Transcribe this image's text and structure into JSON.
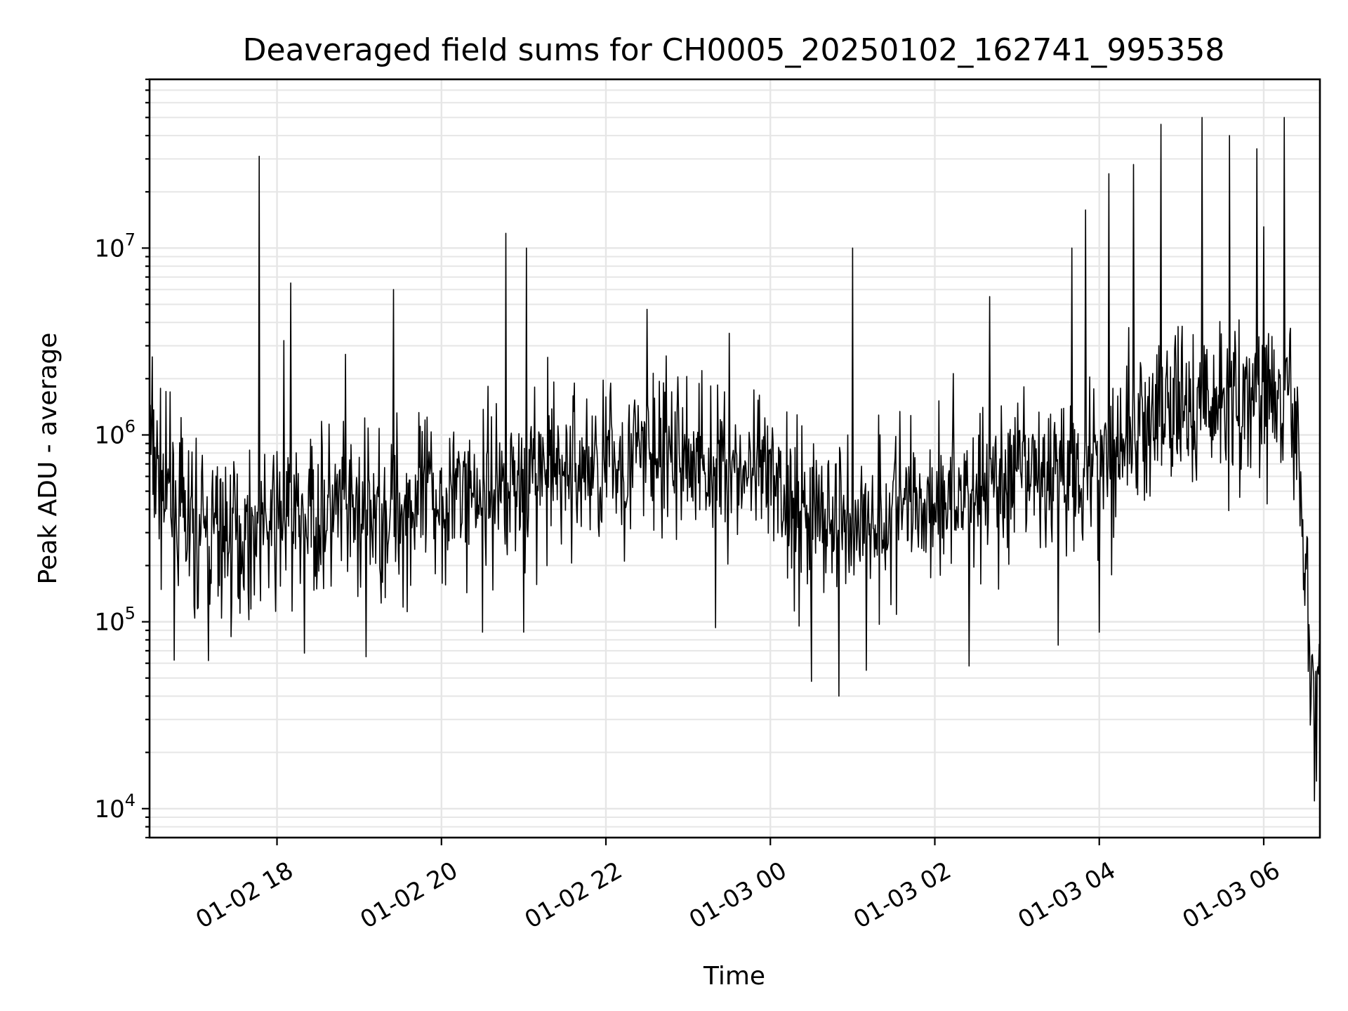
{
  "chart_data": {
    "type": "line",
    "title": "Deaveraged field sums for CH0005_20250102_162741_995358",
    "xlabel": "Time",
    "ylabel": "Peak ADU - average",
    "yscale": "log",
    "ylim": [
      7000,
      80000000
    ],
    "xlim": [
      "2025-01-02 16:27",
      "2025-01-03 06:41"
    ],
    "grid": true,
    "x_ticks": [
      {
        "value": "2025-01-02 18:00",
        "label": "01-02 18"
      },
      {
        "value": "2025-01-02 20:00",
        "label": "01-02 20"
      },
      {
        "value": "2025-01-02 22:00",
        "label": "01-02 22"
      },
      {
        "value": "2025-01-03 00:00",
        "label": "01-03 00"
      },
      {
        "value": "2025-01-03 02:00",
        "label": "01-03 02"
      },
      {
        "value": "2025-01-03 04:00",
        "label": "01-03 04"
      },
      {
        "value": "2025-01-03 06:00",
        "label": "01-03 06"
      }
    ],
    "y_ticks": [
      {
        "value": 10000,
        "base": "10",
        "exp": "4"
      },
      {
        "value": 100000,
        "base": "10",
        "exp": "5"
      },
      {
        "value": 1000000,
        "base": "10",
        "exp": "6"
      },
      {
        "value": 10000000,
        "base": "10",
        "exp": "7"
      }
    ],
    "series": [
      {
        "color": "#000000",
        "trend": [
          {
            "x": "2025-01-02 16:27",
            "y": 900000
          },
          {
            "x": "2025-01-02 16:40",
            "y": 420000
          },
          {
            "x": "2025-01-02 17:00",
            "y": 300000
          },
          {
            "x": "2025-01-02 17:30",
            "y": 290000
          },
          {
            "x": "2025-01-02 18:00",
            "y": 330000
          },
          {
            "x": "2025-01-02 18:30",
            "y": 380000
          },
          {
            "x": "2025-01-02 19:00",
            "y": 360000
          },
          {
            "x": "2025-01-02 19:30",
            "y": 400000
          },
          {
            "x": "2025-01-02 20:00",
            "y": 470000
          },
          {
            "x": "2025-01-02 20:30",
            "y": 520000
          },
          {
            "x": "2025-01-02 21:00",
            "y": 580000
          },
          {
            "x": "2025-01-02 21:30",
            "y": 640000
          },
          {
            "x": "2025-01-02 22:00",
            "y": 700000
          },
          {
            "x": "2025-01-02 22:30",
            "y": 780000
          },
          {
            "x": "2025-01-02 23:00",
            "y": 760000
          },
          {
            "x": "2025-01-02 23:30",
            "y": 680000
          },
          {
            "x": "2025-01-03 00:00",
            "y": 540000
          },
          {
            "x": "2025-01-03 00:30",
            "y": 380000
          },
          {
            "x": "2025-01-03 01:00",
            "y": 340000
          },
          {
            "x": "2025-01-03 01:30",
            "y": 400000
          },
          {
            "x": "2025-01-03 02:00",
            "y": 470000
          },
          {
            "x": "2025-01-03 02:30",
            "y": 520000
          },
          {
            "x": "2025-01-03 03:00",
            "y": 560000
          },
          {
            "x": "2025-01-03 03:30",
            "y": 640000
          },
          {
            "x": "2025-01-03 04:00",
            "y": 760000
          },
          {
            "x": "2025-01-03 04:30",
            "y": 1100000
          },
          {
            "x": "2025-01-03 05:00",
            "y": 1350000
          },
          {
            "x": "2025-01-03 05:30",
            "y": 1500000
          },
          {
            "x": "2025-01-03 06:00",
            "y": 1550000
          },
          {
            "x": "2025-01-03 06:20",
            "y": 1350000
          },
          {
            "x": "2025-01-03 06:25",
            "y": 900000
          },
          {
            "x": "2025-01-03 06:30",
            "y": 200000
          },
          {
            "x": "2025-01-03 06:35",
            "y": 50000
          },
          {
            "x": "2025-01-03 06:41",
            "y": 40000
          }
        ],
        "spikes": [
          {
            "x": "2025-01-02 16:42",
            "y": 1700000
          },
          {
            "x": "2025-01-02 17:47",
            "y": 31000000
          },
          {
            "x": "2025-01-02 18:05",
            "y": 3200000
          },
          {
            "x": "2025-01-02 18:10",
            "y": 6500000
          },
          {
            "x": "2025-01-02 18:50",
            "y": 2700000
          },
          {
            "x": "2025-01-02 19:25",
            "y": 6000000
          },
          {
            "x": "2025-01-02 20:47",
            "y": 12000000
          },
          {
            "x": "2025-01-02 21:00",
            "y": 6500000
          },
          {
            "x": "2025-01-02 21:02",
            "y": 10000000
          },
          {
            "x": "2025-01-02 22:30",
            "y": 4700000
          },
          {
            "x": "2025-01-02 23:30",
            "y": 3500000
          },
          {
            "x": "2025-01-03 01:00",
            "y": 10000000
          },
          {
            "x": "2025-01-03 02:40",
            "y": 5500000
          },
          {
            "x": "2025-01-03 03:40",
            "y": 10000000
          },
          {
            "x": "2025-01-03 03:50",
            "y": 16000000
          },
          {
            "x": "2025-01-03 04:07",
            "y": 25000000
          },
          {
            "x": "2025-01-03 04:25",
            "y": 28000000
          },
          {
            "x": "2025-01-03 04:45",
            "y": 46000000
          },
          {
            "x": "2025-01-03 05:15",
            "y": 50000000
          },
          {
            "x": "2025-01-03 05:35",
            "y": 40000000
          },
          {
            "x": "2025-01-03 05:55",
            "y": 34000000
          },
          {
            "x": "2025-01-03 06:00",
            "y": 13000000
          },
          {
            "x": "2025-01-03 06:15",
            "y": 50000000
          }
        ],
        "dips": [
          {
            "x": "2025-01-02 17:10",
            "y": 62000
          },
          {
            "x": "2025-01-02 18:20",
            "y": 68000
          },
          {
            "x": "2025-01-02 19:05",
            "y": 65000
          },
          {
            "x": "2025-01-02 20:30",
            "y": 88000
          },
          {
            "x": "2025-01-02 21:00",
            "y": 88000
          },
          {
            "x": "2025-01-02 23:20",
            "y": 93000
          },
          {
            "x": "2025-01-03 00:30",
            "y": 48000
          },
          {
            "x": "2025-01-03 00:50",
            "y": 40000
          },
          {
            "x": "2025-01-03 01:10",
            "y": 55000
          },
          {
            "x": "2025-01-03 02:25",
            "y": 58000
          },
          {
            "x": "2025-01-03 03:30",
            "y": 75000
          },
          {
            "x": "2025-01-03 04:00",
            "y": 88000
          },
          {
            "x": "2025-01-03 06:37",
            "y": 11000
          }
        ]
      }
    ]
  }
}
